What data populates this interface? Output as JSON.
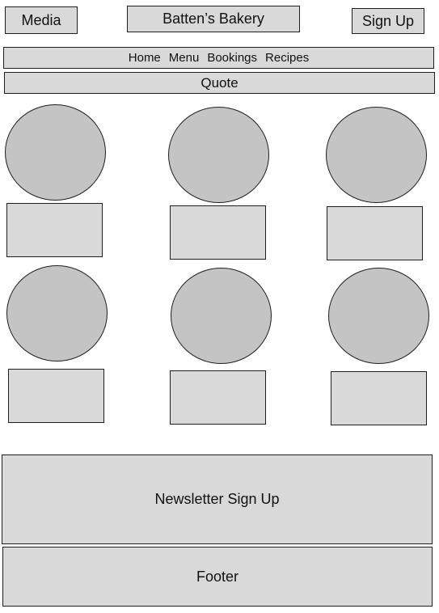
{
  "header": {
    "media_label": "Media",
    "title": "Batten’s Bakery",
    "signup_label": "Sign Up"
  },
  "nav": {
    "items": [
      {
        "label": "Home"
      },
      {
        "label": "Menu"
      },
      {
        "label": "Bookings"
      },
      {
        "label": "Recipes"
      }
    ]
  },
  "quote": {
    "label": "Quote"
  },
  "newsletter": {
    "label": "Newsletter Sign Up"
  },
  "footer": {
    "label": "Footer"
  },
  "colors": {
    "box_fill": "#d9d9d9",
    "circle_fill": "#c4c4c4",
    "border": "#1f1f1f"
  }
}
